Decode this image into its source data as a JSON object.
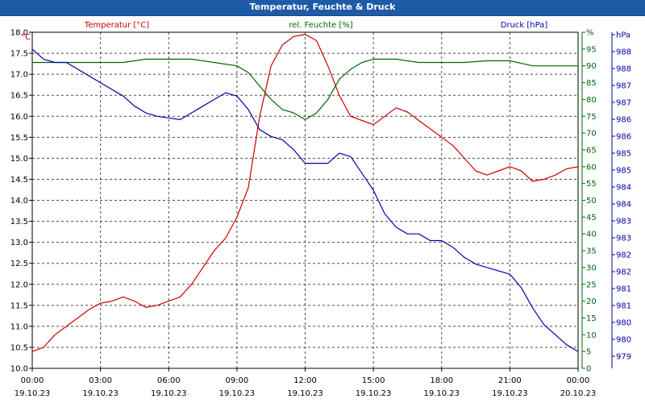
{
  "window": {
    "title": "Temperatur, Feuchte & Druck"
  },
  "chart_data": {
    "type": "line",
    "title": "Temperatur, Feuchte & Druck",
    "grid": true,
    "x_axis": {
      "range": [
        "19.10.23 00:00",
        "20.10.23 00:00"
      ],
      "ticks": [
        {
          "time": "00:00",
          "date": "19.10.23"
        },
        {
          "time": "03:00",
          "date": "19.10.23"
        },
        {
          "time": "06:00",
          "date": "19.10.23"
        },
        {
          "time": "09:00",
          "date": "19.10.23"
        },
        {
          "time": "12:00",
          "date": "19.10.23"
        },
        {
          "time": "15:00",
          "date": "19.10.23"
        },
        {
          "time": "18:00",
          "date": "19.10.23"
        },
        {
          "time": "21:00",
          "date": "19.10.23"
        },
        {
          "time": "00:00",
          "date": "20.10.23"
        }
      ]
    },
    "axes": {
      "temperature": {
        "unit": "°C",
        "range": [
          10.0,
          18.0
        ],
        "tick_labels": [
          "10.0",
          "10.5",
          "11.0",
          "11.5",
          "12.0",
          "12.5",
          "13.0",
          "13.5",
          "14.0",
          "14.5",
          "15.0",
          "15.5",
          "16.0",
          "16.5",
          "17.0",
          "17.5",
          "18.0"
        ]
      },
      "humidity": {
        "unit": "%",
        "range": [
          0,
          100
        ],
        "tick_labels": [
          "0",
          "5",
          "10",
          "15",
          "20",
          "25",
          "30",
          "35",
          "40",
          "45",
          "50",
          "55",
          "60",
          "65",
          "70",
          "75",
          "80",
          "85",
          "90",
          "95",
          "%"
        ]
      },
      "pressure": {
        "unit": "hPa",
        "range": [
          978.5,
          988.5
        ],
        "tick_labels": [
          "979",
          "980",
          "980",
          "981",
          "981",
          "982",
          "982",
          "983",
          "983",
          "984",
          "984",
          "985",
          "985",
          "986",
          "986",
          "987",
          "987",
          "988",
          "988",
          "hPa"
        ]
      }
    },
    "series": [
      {
        "name": "Temperatur [°C]",
        "color": "#cc0000",
        "axis": "temperature",
        "x_hours": [
          0,
          0.5,
          1,
          1.5,
          2,
          2.5,
          3,
          3.5,
          4,
          4.5,
          5,
          5.5,
          6,
          6.5,
          7,
          7.5,
          8,
          8.5,
          9,
          9.5,
          10,
          10.5,
          11,
          11.5,
          12,
          12.5,
          13,
          13.5,
          14,
          14.5,
          15,
          15.5,
          16,
          16.5,
          17,
          17.5,
          18,
          18.5,
          19,
          19.5,
          20,
          20.5,
          21,
          21.5,
          22,
          22.5,
          23,
          23.5,
          24
        ],
        "values": [
          10.4,
          10.5,
          10.8,
          11.0,
          11.2,
          11.4,
          11.55,
          11.6,
          11.7,
          11.6,
          11.45,
          11.5,
          11.6,
          11.7,
          12.0,
          12.4,
          12.8,
          13.1,
          13.6,
          14.3,
          16.0,
          17.2,
          17.7,
          17.9,
          17.95,
          17.8,
          17.2,
          16.5,
          16.0,
          15.9,
          15.8,
          16.0,
          16.2,
          16.1,
          15.9,
          15.7,
          15.5,
          15.3,
          15.0,
          14.7,
          14.6,
          14.7,
          14.8,
          14.7,
          14.45,
          14.5,
          14.6,
          14.75,
          14.8
        ]
      },
      {
        "name": "rel. Feuchte [%]",
        "color": "#006600",
        "axis": "humidity",
        "x_hours": [
          0,
          1,
          2,
          3,
          4,
          5,
          6,
          7,
          8,
          9,
          9.5,
          10,
          10.5,
          11,
          11.5,
          12,
          12.5,
          13,
          13.5,
          14,
          14.5,
          15,
          15.5,
          16,
          17,
          18,
          19,
          20,
          21,
          22,
          23,
          24
        ],
        "values": [
          91,
          91,
          91,
          91,
          91,
          92,
          92,
          92,
          91,
          90,
          88,
          84,
          80,
          77,
          76,
          74,
          76,
          80,
          86,
          89,
          91,
          92,
          92,
          92,
          91,
          91,
          91,
          91.5,
          91.5,
          90,
          90,
          90
        ]
      },
      {
        "name": "Druck [hPa]",
        "color": "#0000aa",
        "axis": "pressure",
        "x_hours": [
          0,
          0.5,
          1,
          1.5,
          2,
          2.5,
          3,
          3.5,
          4,
          4.5,
          5,
          5.5,
          6,
          6.5,
          7,
          7.5,
          8,
          8.5,
          9,
          9.5,
          10,
          10.5,
          11,
          11.5,
          12,
          12.5,
          13,
          13.5,
          14,
          14.5,
          15,
          15.5,
          16,
          16.5,
          17,
          17.5,
          18,
          18.5,
          19,
          19.5,
          20,
          20.5,
          21,
          21.5,
          22,
          22.5,
          23,
          23.5,
          24
        ],
        "values": [
          988.0,
          987.7,
          987.6,
          987.6,
          987.4,
          987.2,
          987.0,
          986.8,
          986.6,
          986.3,
          986.1,
          986.0,
          985.95,
          985.9,
          986.1,
          986.3,
          986.5,
          986.7,
          986.6,
          986.2,
          985.6,
          985.4,
          985.3,
          985.0,
          984.6,
          984.6,
          984.6,
          984.9,
          984.8,
          984.3,
          983.8,
          983.1,
          982.7,
          982.5,
          982.5,
          982.3,
          982.3,
          982.1,
          981.8,
          981.6,
          981.5,
          981.4,
          981.3,
          980.9,
          980.3,
          979.8,
          979.5,
          979.2,
          979.0
        ]
      }
    ]
  }
}
